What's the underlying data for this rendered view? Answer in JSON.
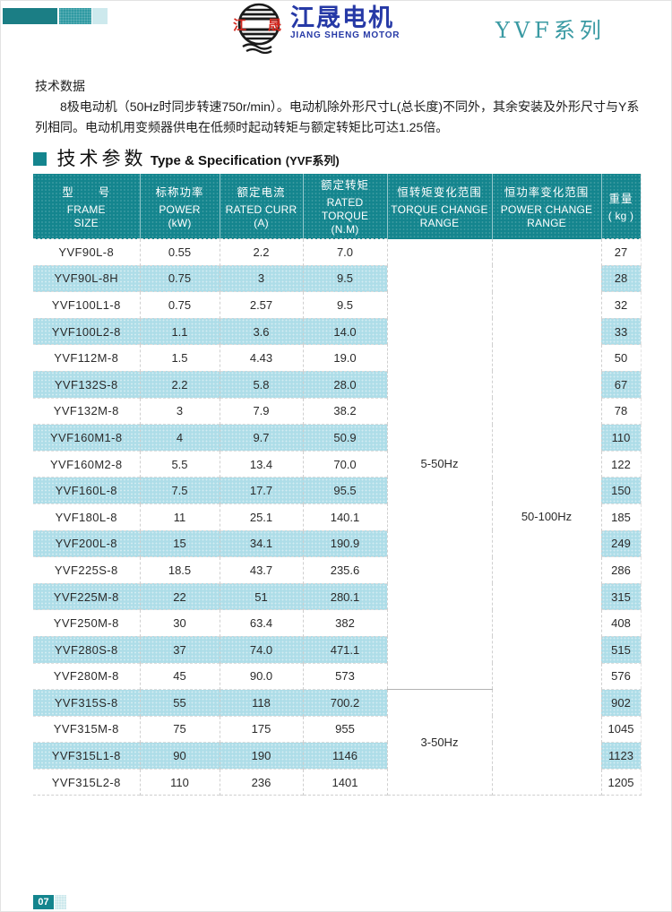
{
  "header": {
    "logo_char1": "江",
    "logo_char2": "晟",
    "brand_cn": "江晟电机",
    "brand_en": "JIANG SHENG MOTOR",
    "series": "YVF系列"
  },
  "intro": {
    "title": "技术数据",
    "paragraph": "8极电动机（50Hz时同步转速750r/min）。电动机除外形尺寸L(总长度)不同外，其余安装及外形尺寸与Y系列相同。电动机用变频器供电在低频时起动转矩与额定转矩比可达1.25倍。"
  },
  "section": {
    "title_cn": "技术参数",
    "title_en": "Type & Specification",
    "title_sub": "(YVF系列)"
  },
  "table": {
    "headers": [
      {
        "cn": "型　　号",
        "en1": "FRAME",
        "en2": "SIZE"
      },
      {
        "cn": "标称功率",
        "en1": "POWER",
        "en2": "(kW)"
      },
      {
        "cn": "额定电流",
        "en1": "RATED CURR",
        "en2": "(A)"
      },
      {
        "cn": "额定转矩",
        "en1": "RATED TORQUE",
        "en2": "(N.M)"
      },
      {
        "cn": "恒转矩变化范围",
        "en1": "TORQUE CHANGE",
        "en2": "RANGE"
      },
      {
        "cn": "恒功率变化范围",
        "en1": "POWER CHANGE",
        "en2": "RANGE"
      },
      {
        "cn": "重量",
        "en1": "( kg )",
        "en2": ""
      }
    ],
    "rows": [
      {
        "model": "YVF90L-8",
        "power": "0.55",
        "curr": "2.2",
        "torque": "7.0",
        "weight": "27"
      },
      {
        "model": "YVF90L-8H",
        "power": "0.75",
        "curr": "3",
        "torque": "9.5",
        "weight": "28"
      },
      {
        "model": "YVF100L1-8",
        "power": "0.75",
        "curr": "2.57",
        "torque": "9.5",
        "weight": "32"
      },
      {
        "model": "YVF100L2-8",
        "power": "1.1",
        "curr": "3.6",
        "torque": "14.0",
        "weight": "33"
      },
      {
        "model": "YVF112M-8",
        "power": "1.5",
        "curr": "4.43",
        "torque": "19.0",
        "weight": "50"
      },
      {
        "model": "YVF132S-8",
        "power": "2.2",
        "curr": "5.8",
        "torque": "28.0",
        "weight": "67"
      },
      {
        "model": "YVF132M-8",
        "power": "3",
        "curr": "7.9",
        "torque": "38.2",
        "weight": "78"
      },
      {
        "model": "YVF160M1-8",
        "power": "4",
        "curr": "9.7",
        "torque": "50.9",
        "weight": "110"
      },
      {
        "model": "YVF160M2-8",
        "power": "5.5",
        "curr": "13.4",
        "torque": "70.0",
        "weight": "122"
      },
      {
        "model": "YVF160L-8",
        "power": "7.5",
        "curr": "17.7",
        "torque": "95.5",
        "weight": "150"
      },
      {
        "model": "YVF180L-8",
        "power": "11",
        "curr": "25.1",
        "torque": "140.1",
        "weight": "185"
      },
      {
        "model": "YVF200L-8",
        "power": "15",
        "curr": "34.1",
        "torque": "190.9",
        "weight": "249"
      },
      {
        "model": "YVF225S-8",
        "power": "18.5",
        "curr": "43.7",
        "torque": "235.6",
        "weight": "286"
      },
      {
        "model": "YVF225M-8",
        "power": "22",
        "curr": "51",
        "torque": "280.1",
        "weight": "315"
      },
      {
        "model": "YVF250M-8",
        "power": "30",
        "curr": "63.4",
        "torque": "382",
        "weight": "408"
      },
      {
        "model": "YVF280S-8",
        "power": "37",
        "curr": "74.0",
        "torque": "471.1",
        "weight": "515"
      },
      {
        "model": "YVF280M-8",
        "power": "45",
        "curr": "90.0",
        "torque": "573",
        "weight": "576"
      },
      {
        "model": "YVF315S-8",
        "power": "55",
        "curr": "118",
        "torque": "700.2",
        "weight": "902"
      },
      {
        "model": "YVF315M-8",
        "power": "75",
        "curr": "175",
        "torque": "955",
        "weight": "1045"
      },
      {
        "model": "YVF315L1-8",
        "power": "90",
        "curr": "190",
        "torque": "1146",
        "weight": "1123"
      },
      {
        "model": "YVF315L2-8",
        "power": "110",
        "curr": "236",
        "torque": "1401",
        "weight": "1205"
      }
    ],
    "torque_ranges": [
      {
        "label": "5-50Hz",
        "span": 17
      },
      {
        "label": "3-50Hz",
        "span": 4
      }
    ],
    "power_range": {
      "label": "50-100Hz",
      "span": 21
    }
  },
  "footer": {
    "page": "07"
  },
  "colors": {
    "teal_header": "#14858e",
    "teal_dark_block": "#1b7e85",
    "teal_mid_block": "#2f9aa2",
    "teal_light_block": "#cde9ed",
    "row_alt": "#aedde8",
    "brand_blue": "#2639a6",
    "logo_red": "#d3281f",
    "series_teal": "#3a9aa3"
  }
}
